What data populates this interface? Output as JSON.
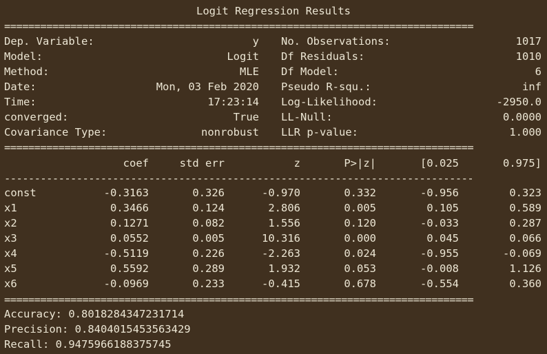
{
  "title": "Logit Regression Results",
  "rule_double": "==============================================================================",
  "rule_single": "------------------------------------------------------------------------------",
  "summary_left": [
    {
      "label": "Dep. Variable:",
      "value": "y"
    },
    {
      "label": "Model:",
      "value": "Logit"
    },
    {
      "label": "Method:",
      "value": "MLE"
    },
    {
      "label": "Date:",
      "value": "Mon, 03 Feb 2020"
    },
    {
      "label": "Time:",
      "value": "17:23:14"
    },
    {
      "label": "converged:",
      "value": "True"
    },
    {
      "label": "Covariance Type:",
      "value": "nonrobust"
    }
  ],
  "summary_right": [
    {
      "label": "No. Observations:",
      "value": "1017"
    },
    {
      "label": "Df Residuals:",
      "value": "1010"
    },
    {
      "label": "Df Model:",
      "value": "6"
    },
    {
      "label": "Pseudo R-squ.:",
      "value": "inf"
    },
    {
      "label": "Log-Likelihood:",
      "value": "-2950.0"
    },
    {
      "label": "LL-Null:",
      "value": "0.0000"
    },
    {
      "label": "LLR p-value:",
      "value": "1.000"
    }
  ],
  "coef_headers": [
    "coef",
    "std err",
    "z",
    "P>|z|",
    "[0.025",
    "0.975]"
  ],
  "coef_rows": [
    {
      "name": "const",
      "cells": [
        "-0.3163",
        "0.326",
        "-0.970",
        "0.332",
        "-0.956",
        "0.323"
      ]
    },
    {
      "name": "x1",
      "cells": [
        "0.3466",
        "0.124",
        "2.806",
        "0.005",
        "0.105",
        "0.589"
      ]
    },
    {
      "name": "x2",
      "cells": [
        "0.1271",
        "0.082",
        "1.556",
        "0.120",
        "-0.033",
        "0.287"
      ]
    },
    {
      "name": "x3",
      "cells": [
        "0.0552",
        "0.005",
        "10.316",
        "0.000",
        "0.045",
        "0.066"
      ]
    },
    {
      "name": "x4",
      "cells": [
        "-0.5119",
        "0.226",
        "-2.263",
        "0.024",
        "-0.955",
        "-0.069"
      ]
    },
    {
      "name": "x5",
      "cells": [
        "0.5592",
        "0.289",
        "1.932",
        "0.053",
        "-0.008",
        "1.126"
      ]
    },
    {
      "name": "x6",
      "cells": [
        "-0.0969",
        "0.233",
        "-0.415",
        "0.678",
        "-0.554",
        "0.360"
      ]
    }
  ],
  "metrics": [
    "Accuracy: 0.8018284347231714",
    "Precision: 0.8404015453563429",
    "Recall: 0.9475966188375745"
  ]
}
